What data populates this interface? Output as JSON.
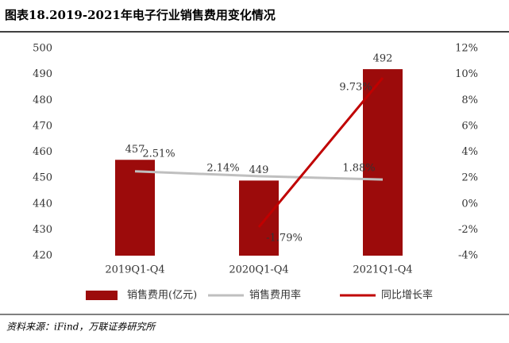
{
  "chart_data": {
    "type": "bar",
    "title": "图表18.2019-2021年电子行业销售费用变化情况",
    "categories": [
      "2019Q1-Q4",
      "2020Q1-Q4",
      "2021Q1-Q4"
    ],
    "series": [
      {
        "name": "销售费用(亿元)",
        "type": "bar",
        "color": "#9c0b0b",
        "values": [
          457,
          449,
          492
        ],
        "value_labels": [
          "457",
          "449",
          "492"
        ]
      },
      {
        "name": "销售费用率",
        "type": "line",
        "axis": "y2",
        "color": "#bfbfbf",
        "values": [
          2.51,
          2.14,
          1.88
        ],
        "value_labels": [
          "2.51%",
          "2.14%",
          "1.88%"
        ]
      },
      {
        "name": "同比增长率",
        "type": "line",
        "axis": "y2",
        "color": "#c00000",
        "values": [
          null,
          -1.79,
          9.73
        ],
        "value_labels": [
          null,
          "-1.79%",
          "9.73%"
        ]
      }
    ],
    "ylim": [
      420,
      500
    ],
    "yticks": [
      420,
      430,
      440,
      450,
      460,
      470,
      480,
      490,
      500
    ],
    "y2lim": [
      -4,
      12
    ],
    "y2ticks": [
      {
        "value": -4,
        "label": "-4%"
      },
      {
        "value": -2,
        "label": "-2%"
      },
      {
        "value": 0,
        "label": "0%"
      },
      {
        "value": 2,
        "label": "2%"
      },
      {
        "value": 4,
        "label": "4%"
      },
      {
        "value": 6,
        "label": "6%"
      },
      {
        "value": 8,
        "label": "8%"
      },
      {
        "value": 10,
        "label": "10%"
      },
      {
        "value": 12,
        "label": "12%"
      }
    ],
    "legend": "bottom",
    "source": "资料来源：iFind，万联证券研究所"
  }
}
